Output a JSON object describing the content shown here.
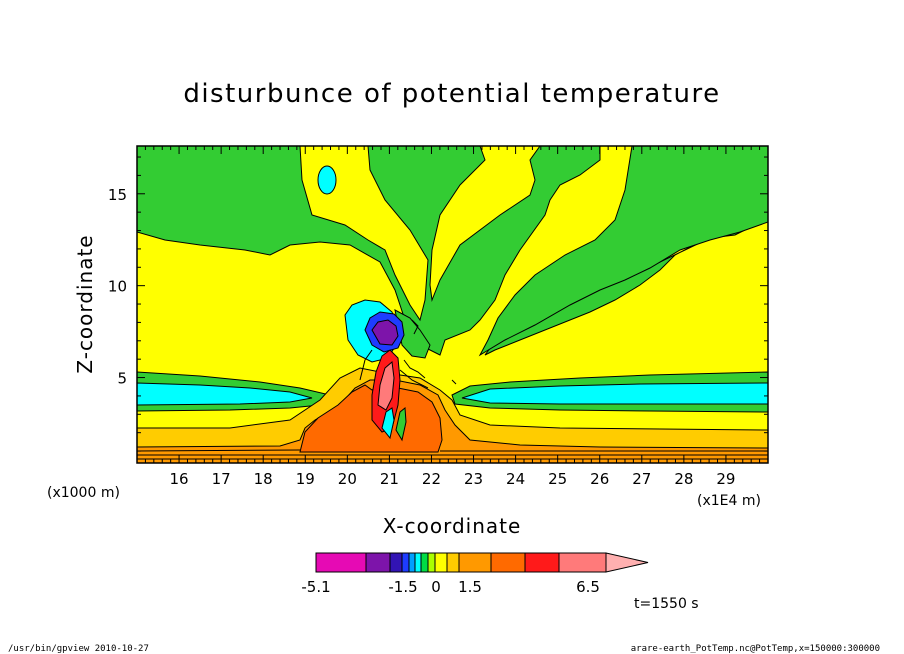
{
  "chart_data": {
    "type": "heatmap",
    "title": "disturbunce of potential temperature",
    "xlabel": "X-coordinate",
    "ylabel": "Z-coordinate",
    "x_unit_label": "(x1E4 m)",
    "y_unit_label": "(x1000 m)",
    "x_ticks": [
      "16",
      "17",
      "18",
      "19",
      "20",
      "21",
      "22",
      "23",
      "24",
      "25",
      "26",
      "27",
      "28",
      "29"
    ],
    "y_ticks": [
      "5",
      "10",
      "15"
    ],
    "x_range": [
      15,
      30
    ],
    "y_range": [
      0.35,
      17.6
    ],
    "time_label": "t=1550 s",
    "colorbar": {
      "tick_labels": [
        "-5.1",
        "-1.5",
        "0",
        "1.5",
        "6.5"
      ],
      "colors": [
        "#e60ab4",
        "#7d14aa",
        "#3214b4",
        "#1e3cff",
        "#00a0ff",
        "#00ffff",
        "#00dd44",
        "#aaff00",
        "#ffff00",
        "#ffcc00",
        "#ff9900",
        "#ff6a00",
        "#ff1a1a",
        "#ff7a7a",
        "#ffb0b0"
      ]
    },
    "regions": [
      {
        "name": "upper-left green",
        "color": "#33cc33",
        "x": [
          15.0,
          21.5
        ],
        "z": [
          12.5,
          17.6
        ]
      },
      {
        "name": "upper-right green",
        "color": "#33cc33",
        "x": [
          22.5,
          30.0
        ],
        "z": [
          13.5,
          17.6
        ]
      },
      {
        "name": "cyan cell",
        "color": "#00ffff",
        "x": [
          18.2,
          18.6
        ],
        "z": [
          14.8,
          16.2
        ]
      },
      {
        "name": "right cyan band",
        "color": "#00ffff",
        "x": [
          22.7,
          30.0
        ],
        "z": [
          3.0,
          4.5
        ]
      },
      {
        "name": "left cyan band",
        "color": "#00ffff",
        "x": [
          15.0,
          19.5
        ],
        "z": [
          3.0,
          4.5
        ]
      },
      {
        "name": "orange core",
        "color": "#ff6a00",
        "x": [
          19.0,
          23.0
        ],
        "z": [
          0.6,
          5.0
        ]
      },
      {
        "name": "red core",
        "color": "#ff1a1a",
        "x": [
          20.6,
          21.1
        ],
        "z": [
          1.8,
          6.0
        ]
      },
      {
        "name": "purple cell",
        "color": "#7d14aa",
        "x": [
          20.6,
          21.3
        ],
        "z": [
          6.6,
          8.2
        ]
      }
    ]
  },
  "footer": {
    "left": "/usr/bin/gpview   2010-10-27",
    "right": "arare-earth_PotTemp.nc@PotTemp,x=150000:300000"
  }
}
